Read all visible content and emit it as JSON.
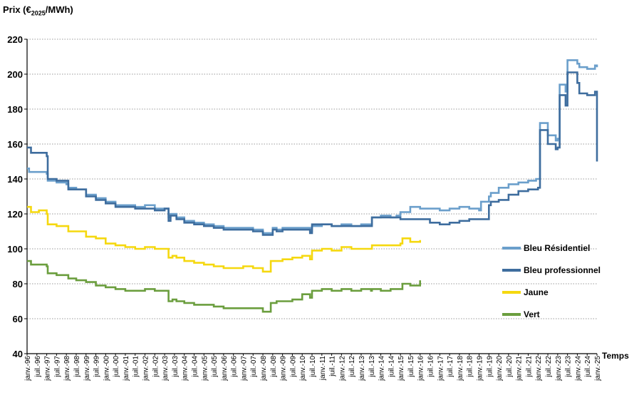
{
  "chart_data": {
    "type": "line",
    "ylabel_main": "Prix (€",
    "ylabel_sub": "2025",
    "ylabel_tail": "/MWh)",
    "xlabel": "Temps",
    "ylim": [
      40,
      220
    ],
    "yticks": [
      40,
      60,
      80,
      100,
      120,
      140,
      160,
      180,
      200,
      220
    ],
    "xlim": [
      1996.0,
      2025.0
    ],
    "grid": "horizontal-dotted",
    "legend_position": "right",
    "x_tick_labels": [
      "janv.-96",
      "juil.-96",
      "janv.-97",
      "juil.-97",
      "janv.-98",
      "juil.-98",
      "janv.-99",
      "juil.-99",
      "janv.-00",
      "juil.-00",
      "janv.-01",
      "juil.-01",
      "janv.-02",
      "juil.-02",
      "janv.-03",
      "juil.-03",
      "janv.-04",
      "juil.-04",
      "janv.-05",
      "juil.-05",
      "janv.-06",
      "juil.-06",
      "janv.-07",
      "juil.-07",
      "janv.-08",
      "juil.-08",
      "janv.-09",
      "juil.-09",
      "janv.-10",
      "juil.-10",
      "janv.-11",
      "juil.-11",
      "janv.-12",
      "juil.-12",
      "janv.-13",
      "juil.-13",
      "janv.-14",
      "juil.-14",
      "janv.-15",
      "juil.-15",
      "janv.-16",
      "juil.-16",
      "janv.-17",
      "juil.-17",
      "janv.-18",
      "juil.-18",
      "janv.-19",
      "juil.-19",
      "janv.-20",
      "juil.-20",
      "janv.-21",
      "juil.-21",
      "janv.-22",
      "juil.-22",
      "janv.-23",
      "juil.-23",
      "janv.-24",
      "juil.-24",
      "janv.-25"
    ],
    "series": [
      {
        "name": "Bleu Résidentiel",
        "color": "#6b9fcb",
        "x": [
          1996.0,
          1996.1,
          1996.5,
          1997.0,
          1997.05,
          1997.5,
          1998.0,
          1998.1,
          1998.5,
          1999.0,
          1999.5,
          2000.0,
          2000.5,
          2001.0,
          2001.5,
          2002.0,
          2002.5,
          2003.0,
          2003.2,
          2003.3,
          2003.6,
          2004.0,
          2004.5,
          2005.0,
          2005.5,
          2006.0,
          2006.5,
          2007.0,
          2007.5,
          2008.0,
          2008.5,
          2008.7,
          2009.0,
          2009.5,
          2010.0,
          2010.4,
          2010.5,
          2011.0,
          2011.5,
          2012.0,
          2012.5,
          2013.0,
          2013.5,
          2013.55,
          2014.0,
          2014.5,
          2014.8,
          2015.0,
          2015.5,
          2016.0,
          2016.5,
          2017.0,
          2017.5,
          2018.0,
          2018.5,
          2019.0,
          2019.1,
          2019.5,
          2019.6,
          2020.0,
          2020.5,
          2021.0,
          2021.5,
          2021.9,
          2022.0,
          2022.1,
          2022.5,
          2022.9,
          2023.0,
          2023.1,
          2023.4,
          2023.5,
          2024.0,
          2024.1,
          2024.5,
          2024.9,
          2025.0
        ],
        "y": [
          146,
          144,
          144,
          143,
          139,
          138,
          137,
          135,
          134,
          131,
          129,
          127,
          125,
          125,
          124,
          125,
          123,
          123,
          118,
          120,
          118,
          116,
          115,
          114,
          113,
          112,
          112,
          112,
          111,
          109,
          112,
          111,
          112,
          112,
          112,
          110,
          113,
          114,
          113,
          114,
          113,
          114,
          114,
          118,
          119,
          118,
          119,
          121,
          124,
          123,
          123,
          122,
          123,
          124,
          123,
          122,
          127,
          130,
          132,
          135,
          137,
          138,
          139,
          140,
          140,
          172,
          165,
          162,
          163,
          194,
          190,
          208,
          206,
          204,
          203,
          205,
          204
        ]
      },
      {
        "name": "Bleu professionnel",
        "color": "#3e6d9e",
        "x": [
          1996.0,
          1996.2,
          1996.5,
          1997.0,
          1997.05,
          1997.5,
          1998.0,
          1998.1,
          1998.5,
          1999.0,
          1999.5,
          2000.0,
          2000.5,
          2001.0,
          2001.5,
          2002.0,
          2002.5,
          2003.0,
          2003.2,
          2003.3,
          2003.6,
          2004.0,
          2004.5,
          2005.0,
          2005.5,
          2006.0,
          2006.5,
          2007.0,
          2007.5,
          2008.0,
          2008.5,
          2008.7,
          2009.0,
          2009.5,
          2010.0,
          2010.4,
          2010.5,
          2011.0,
          2011.5,
          2012.0,
          2012.5,
          2013.0,
          2013.5,
          2013.55,
          2014.0,
          2014.5,
          2015.0,
          2015.5,
          2016.0,
          2016.5,
          2017.0,
          2017.5,
          2018.0,
          2018.5,
          2019.0,
          2019.1,
          2019.5,
          2019.6,
          2020.0,
          2020.5,
          2021.0,
          2021.5,
          2022.0,
          2022.1,
          2022.5,
          2022.9,
          2023.0,
          2023.1,
          2023.4,
          2023.5,
          2024.0,
          2024.1,
          2024.5,
          2024.9,
          2025.0
        ],
        "y": [
          158,
          155,
          155,
          153,
          140,
          139,
          139,
          134,
          134,
          130,
          128,
          126,
          124,
          124,
          123,
          123,
          122,
          123,
          116,
          119,
          117,
          115,
          114,
          113,
          112,
          111,
          111,
          111,
          110,
          108,
          111,
          110,
          111,
          111,
          111,
          109,
          114,
          114,
          113,
          113,
          113,
          113,
          113,
          118,
          118,
          118,
          117,
          117,
          117,
          115,
          114,
          115,
          116,
          117,
          117,
          117,
          125,
          127,
          128,
          131,
          133,
          134,
          135,
          168,
          160,
          157,
          158,
          188,
          182,
          201,
          195,
          189,
          188,
          190,
          150
        ]
      },
      {
        "name": "Jaune",
        "color": "#f5d80f",
        "x": [
          1996.0,
          1996.2,
          1996.6,
          1997.0,
          1997.05,
          1997.5,
          1998.0,
          1998.1,
          1998.5,
          1999.0,
          1999.5,
          2000.0,
          2000.5,
          2001.0,
          2001.5,
          2002.0,
          2002.5,
          2003.0,
          2003.2,
          2003.4,
          2003.6,
          2004.0,
          2004.5,
          2005.0,
          2005.5,
          2006.0,
          2006.5,
          2007.0,
          2007.5,
          2008.0,
          2008.4,
          2008.7,
          2009.0,
          2009.5,
          2010.0,
          2010.4,
          2010.5,
          2011.0,
          2011.5,
          2012.0,
          2012.5,
          2013.0,
          2013.5,
          2013.55,
          2014.0,
          2014.5,
          2015.0,
          2015.1,
          2015.5,
          2016.0
        ],
        "y": [
          124,
          121,
          122,
          120,
          114,
          113,
          113,
          110,
          110,
          107,
          106,
          103,
          102,
          101,
          100,
          101,
          100,
          100,
          95,
          96,
          95,
          93,
          92,
          91,
          90,
          89,
          89,
          90,
          89,
          87,
          93,
          93,
          94,
          95,
          96,
          94,
          99,
          100,
          99,
          101,
          100,
          100,
          100,
          102,
          102,
          102,
          103,
          106,
          104,
          105
        ]
      },
      {
        "name": "Vert",
        "color": "#6b9e3e",
        "x": [
          1996.0,
          1996.2,
          1996.6,
          1997.0,
          1997.05,
          1997.5,
          1998.0,
          1998.1,
          1998.5,
          1999.0,
          1999.5,
          2000.0,
          2000.5,
          2001.0,
          2001.5,
          2002.0,
          2002.5,
          2003.0,
          2003.2,
          2003.4,
          2003.6,
          2004.0,
          2004.5,
          2005.0,
          2005.5,
          2006.0,
          2006.5,
          2007.0,
          2007.5,
          2008.0,
          2008.4,
          2008.7,
          2009.0,
          2009.5,
          2010.0,
          2010.4,
          2010.5,
          2011.0,
          2011.5,
          2012.0,
          2012.5,
          2013.0,
          2013.5,
          2013.55,
          2014.0,
          2014.5,
          2015.0,
          2015.1,
          2015.5,
          2016.0
        ],
        "y": [
          93,
          91,
          91,
          90,
          86,
          85,
          85,
          83,
          82,
          81,
          79,
          78,
          77,
          76,
          76,
          77,
          76,
          76,
          70,
          71,
          70,
          69,
          68,
          68,
          67,
          66,
          66,
          66,
          66,
          64,
          69,
          70,
          70,
          71,
          74,
          72,
          76,
          77,
          76,
          77,
          76,
          77,
          76,
          77,
          76,
          77,
          77,
          80,
          79,
          82
        ]
      }
    ]
  }
}
